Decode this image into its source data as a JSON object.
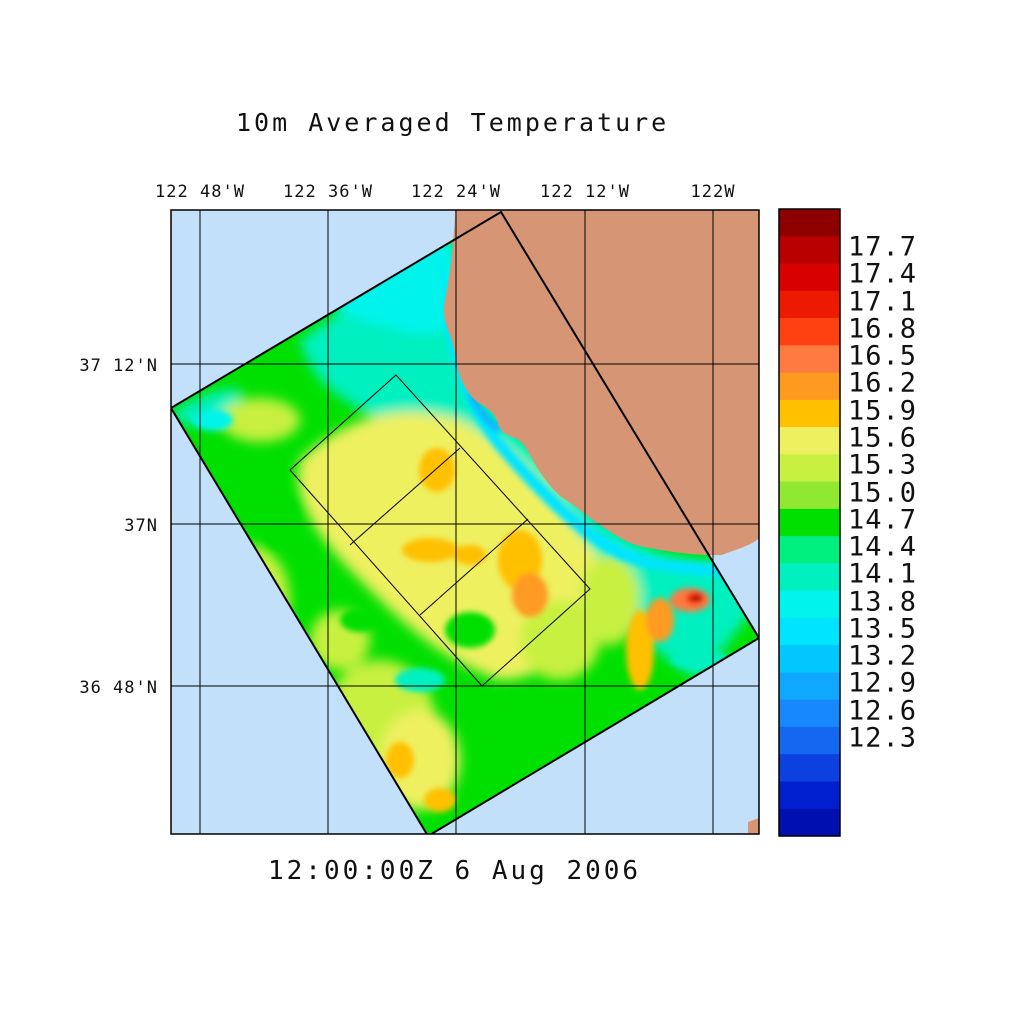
{
  "title": "10m Averaged Temperature",
  "timestamp": "12:00:00Z",
  "date": "6 Aug 2006",
  "longitude_labels": [
    "122 48'W",
    "122 36'W",
    "122 24'W",
    "122 12'W",
    "122W"
  ],
  "latitude_labels": [
    "37 12'N",
    "37N",
    "36 48'N"
  ],
  "colorbar": {
    "labels": [
      "17.7",
      "17.4",
      "17.1",
      "16.8",
      "16.5",
      "16.2",
      "15.9",
      "15.6",
      "15.3",
      "15.0",
      "14.7",
      "14.4",
      "14.1",
      "13.8",
      "13.5",
      "13.2",
      "12.9",
      "12.6",
      "12.3"
    ],
    "colors": [
      "#8e0000",
      "#b80000",
      "#d80000",
      "#ee1a00",
      "#ff4010",
      "#ff7a40",
      "#ff9a20",
      "#ffc000",
      "#eef060",
      "#c8f040",
      "#90e830",
      "#00e000",
      "#00f080",
      "#00f0c0",
      "#00f4ec",
      "#00e4ff",
      "#00c8ff",
      "#10a8ff",
      "#1888ff",
      "#1468f0",
      "#0c40e0",
      "#0020d0",
      "#0010b0"
    ]
  },
  "colors": {
    "ocean": "#c2e0fa",
    "land": "#d69676",
    "grid": "#000000"
  },
  "regions": [
    "outer-domain",
    "nested-domain-1",
    "nested-domain-2"
  ]
}
